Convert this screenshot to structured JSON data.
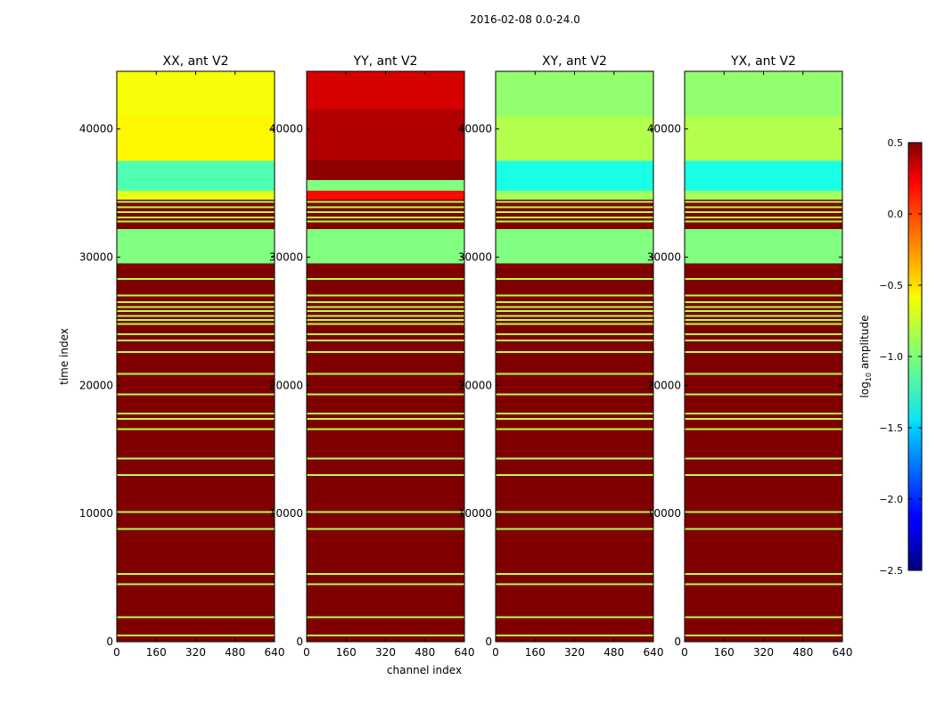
{
  "figure": {
    "suptitle": "2016-02-08 0.0-24.0"
  },
  "chart_data": {
    "type": "heatmap",
    "title": "2016-02-08 0.0-24.0",
    "xlabel": "channel index",
    "ylabel": "time index",
    "xlim": [
      0,
      640
    ],
    "ylim": [
      0,
      44500
    ],
    "x_ticks": [
      0,
      160,
      320,
      480,
      640
    ],
    "y_ticks": [
      0,
      10000,
      20000,
      30000,
      40000
    ],
    "colorbar": {
      "label": "log10 amplitude",
      "label_main": "log",
      "label_sub": "10",
      "label_tail": " amplitude",
      "range": [
        -2.5,
        0.5
      ],
      "ticks": [
        0.5,
        0.0,
        -0.5,
        -1.0,
        -1.5,
        -2.0,
        -2.5
      ],
      "tick_labels": [
        "0.5",
        "0.0",
        "−0.5",
        "−1.0",
        "−1.5",
        "−2.0",
        "−2.5"
      ],
      "colormap": "jet"
    },
    "panels": [
      {
        "title": "XX, ant V2",
        "bands": [
          {
            "y0": 0,
            "y1": 29500,
            "value": 0.5
          },
          {
            "y0": 29500,
            "y1": 32200,
            "value": -1.0
          },
          {
            "y0": 32200,
            "y1": 34500,
            "value": 0.5
          },
          {
            "y0": 34500,
            "y1": 35200,
            "value": -0.7
          },
          {
            "y0": 35200,
            "y1": 37500,
            "value": -1.15
          },
          {
            "y0": 37500,
            "y1": 41000,
            "value": -0.6
          },
          {
            "y0": 41000,
            "y1": 44500,
            "value": -0.65
          }
        ],
        "stripes": [
          500,
          1900,
          4500,
          5300,
          8800,
          10100,
          13000,
          14300,
          16600,
          17400,
          17800,
          19300,
          20900,
          22600,
          23500,
          24000,
          24800,
          25100,
          25400,
          25800,
          26100,
          26500,
          27000,
          28300,
          32800,
          33100,
          33500,
          33900,
          34300
        ]
      },
      {
        "title": "YY, ant V2",
        "bands": [
          {
            "y0": 0,
            "y1": 29500,
            "value": 0.5
          },
          {
            "y0": 29500,
            "y1": 32200,
            "value": -1.0
          },
          {
            "y0": 32200,
            "y1": 34500,
            "value": 0.5
          },
          {
            "y0": 34500,
            "y1": 35200,
            "value": 0.1
          },
          {
            "y0": 35200,
            "y1": 36000,
            "value": -1.0
          },
          {
            "y0": 36000,
            "y1": 37600,
            "value": 0.45
          },
          {
            "y0": 37600,
            "y1": 41500,
            "value": 0.35
          },
          {
            "y0": 41500,
            "y1": 44500,
            "value": 0.25
          }
        ],
        "stripes": [
          500,
          1900,
          4500,
          5300,
          8800,
          10100,
          13000,
          14300,
          16600,
          17400,
          17800,
          19300,
          20900,
          22600,
          23500,
          24000,
          24800,
          25100,
          25400,
          25800,
          26100,
          26500,
          27000,
          28300,
          32800,
          33100,
          33500,
          33900,
          34300
        ]
      },
      {
        "title": "XY, ant V2",
        "bands": [
          {
            "y0": 0,
            "y1": 29500,
            "value": 0.5
          },
          {
            "y0": 29500,
            "y1": 32200,
            "value": -1.0
          },
          {
            "y0": 32200,
            "y1": 34500,
            "value": 0.5
          },
          {
            "y0": 34500,
            "y1": 35200,
            "value": -0.9
          },
          {
            "y0": 35200,
            "y1": 37500,
            "value": -1.3
          },
          {
            "y0": 37500,
            "y1": 41000,
            "value": -0.85
          },
          {
            "y0": 41000,
            "y1": 44500,
            "value": -0.95
          }
        ],
        "stripes": [
          500,
          1900,
          4500,
          5300,
          8800,
          10100,
          13000,
          14300,
          16600,
          17400,
          17800,
          19300,
          20900,
          22600,
          23500,
          24000,
          24800,
          25100,
          25400,
          25800,
          26100,
          26500,
          27000,
          28300,
          32800,
          33100,
          33500,
          33900,
          34300
        ]
      },
      {
        "title": "YX, ant V2",
        "bands": [
          {
            "y0": 0,
            "y1": 29500,
            "value": 0.5
          },
          {
            "y0": 29500,
            "y1": 32200,
            "value": -1.0
          },
          {
            "y0": 32200,
            "y1": 34500,
            "value": 0.5
          },
          {
            "y0": 34500,
            "y1": 35200,
            "value": -0.9
          },
          {
            "y0": 35200,
            "y1": 37500,
            "value": -1.3
          },
          {
            "y0": 37500,
            "y1": 41000,
            "value": -0.85
          },
          {
            "y0": 41000,
            "y1": 44500,
            "value": -0.95
          }
        ],
        "stripes": [
          500,
          1900,
          4500,
          5300,
          8800,
          10100,
          13000,
          14300,
          16600,
          17400,
          17800,
          19300,
          20900,
          22600,
          23500,
          24000,
          24800,
          25100,
          25400,
          25800,
          26100,
          26500,
          27000,
          28300,
          32800,
          33100,
          33500,
          33900,
          34300
        ]
      }
    ]
  }
}
